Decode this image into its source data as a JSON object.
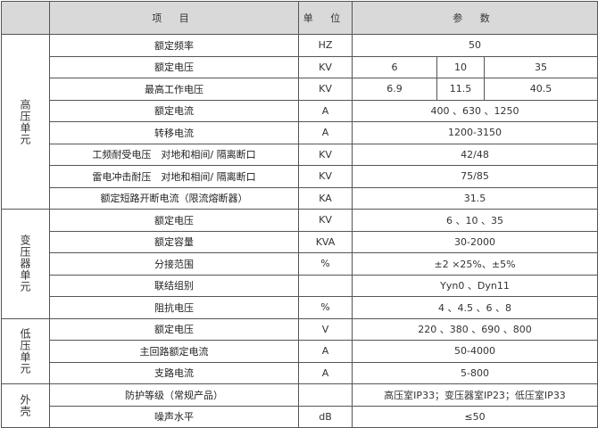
{
  "header": {
    "blank": "",
    "item": "项 目",
    "unit": "单 位",
    "param": "参 数"
  },
  "groups": [
    {
      "name": "高压单元",
      "rows": [
        {
          "item": "额定频率",
          "unit": "HZ",
          "value": "50"
        },
        {
          "item": "额定电压",
          "unit": "KV",
          "values": [
            "6",
            "10",
            "35"
          ]
        },
        {
          "item": "最高工作电压",
          "unit": "KV",
          "values": [
            "6.9",
            "11.5",
            "40.5"
          ]
        },
        {
          "item": "额定电流",
          "unit": "A",
          "value": "400 、630 、1250"
        },
        {
          "item": "转移电流",
          "unit": "A",
          "value": "1200-3150"
        },
        {
          "item": "工频耐受电压　对地和相间/ 隔离断口",
          "unit": "KV",
          "value": "42/48"
        },
        {
          "item": "雷电冲击耐压　对地和相间/ 隔离断口",
          "unit": "KV",
          "value": "75/85"
        },
        {
          "item": "额定短路开断电流（限流熔断器）",
          "unit": "KA",
          "value": "31.5"
        }
      ]
    },
    {
      "name": "变压器单元",
      "rows": [
        {
          "item": "额定电压",
          "unit": "KV",
          "value": "6 、10 、35"
        },
        {
          "item": "额定容量",
          "unit": "KVA",
          "value": "30-2000"
        },
        {
          "item": "分接范围",
          "unit": "%",
          "value": "±2 ×25%、±5%"
        },
        {
          "item": "联结组别",
          "unit": "",
          "value": "Yyn0 、Dyn11"
        },
        {
          "item": "阻抗电压",
          "unit": "%",
          "value": "4 、4.5 、6 、8"
        }
      ]
    },
    {
      "name": "低压单元",
      "rows": [
        {
          "item": "额定电压",
          "unit": "V",
          "value": "220 、380 、690 、800"
        },
        {
          "item": "主回路额定电流",
          "unit": "A",
          "value": "50-4000"
        },
        {
          "item": "支路电流",
          "unit": "A",
          "value": "5-800"
        }
      ]
    },
    {
      "name": "外壳",
      "rows": [
        {
          "item": "防护等级（常规产品）",
          "unit": "",
          "value": "高压室IP33；变压器室IP23；低压室IP33"
        },
        {
          "item": "噪声水平",
          "unit": "dB",
          "value": "≤50"
        }
      ]
    }
  ]
}
